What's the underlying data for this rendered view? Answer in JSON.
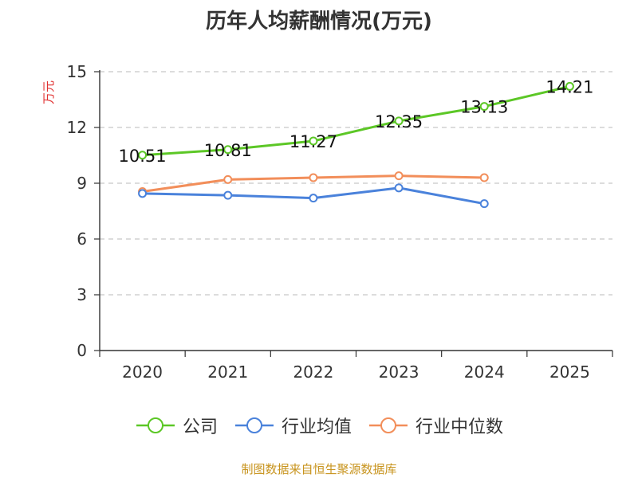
{
  "chart_data": {
    "type": "line",
    "title": "历年人均薪酬情况(万元)",
    "ylabel": "万元",
    "ylabel_color": "#e03030",
    "categories": [
      "2020",
      "2021",
      "2022",
      "2023",
      "2024",
      "2025"
    ],
    "ylim": [
      0,
      15
    ],
    "yticks": [
      0,
      3,
      6,
      9,
      12,
      15
    ],
    "grid": true,
    "legend_position": "bottom",
    "series": [
      {
        "name": "公司",
        "color": "#5cc726",
        "values": [
          10.51,
          10.81,
          11.27,
          12.35,
          13.13,
          14.21
        ],
        "labels": [
          "10.51",
          "10.81",
          "11.27",
          "12.35",
          "13.13",
          "14.21"
        ]
      },
      {
        "name": "行业均值",
        "color": "#4a82db",
        "values": [
          8.45,
          8.35,
          8.2,
          8.75,
          7.9,
          null
        ],
        "labels": []
      },
      {
        "name": "行业中位数",
        "color": "#f28e5a",
        "values": [
          8.55,
          9.2,
          9.3,
          9.4,
          9.3,
          null
        ],
        "labels": []
      }
    ]
  },
  "source": "制图数据来自恒生聚源数据库"
}
